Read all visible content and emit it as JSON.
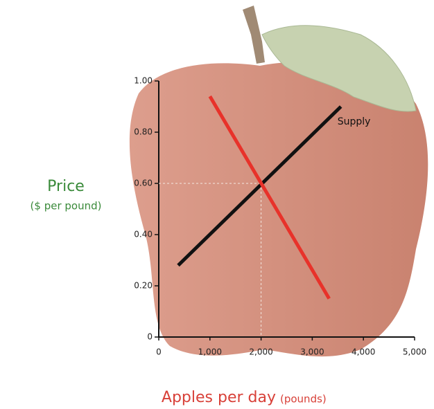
{
  "chart_data": {
    "type": "line",
    "x_label": "Apples per day",
    "x_label_unit": "(pounds)",
    "y_label": "Price",
    "y_label_unit": "($ per pound)",
    "xlim": [
      0,
      5000
    ],
    "xticks": [
      0,
      {
        "value": 1000,
        "label": "1,000"
      },
      {
        "value": 2000,
        "label": "2,000"
      },
      {
        "value": 3000,
        "label": "3,000"
      },
      {
        "value": 4000,
        "label": "4,000"
      },
      {
        "value": 5000,
        "label": "5,000"
      }
    ],
    "ylim": [
      0,
      1
    ],
    "yticks": [
      0,
      {
        "value": 0.2,
        "label": "0.20"
      },
      {
        "value": 0.4,
        "label": "0.40"
      },
      {
        "value": 0.6,
        "label": "0.60"
      },
      {
        "value": 0.8,
        "label": "0.80"
      },
      {
        "value": 1,
        "label": "1.00"
      }
    ],
    "series": [
      {
        "name": "Supply",
        "color": "#111111",
        "x": [
          380,
          3560
        ],
        "values": [
          0.28,
          0.9
        ]
      },
      {
        "color": "#e8322a",
        "x": [
          1000,
          3330
        ],
        "values": [
          0.94,
          0.15
        ]
      }
    ],
    "equilibrium": {
      "x": 2000,
      "y": 0.6
    }
  }
}
